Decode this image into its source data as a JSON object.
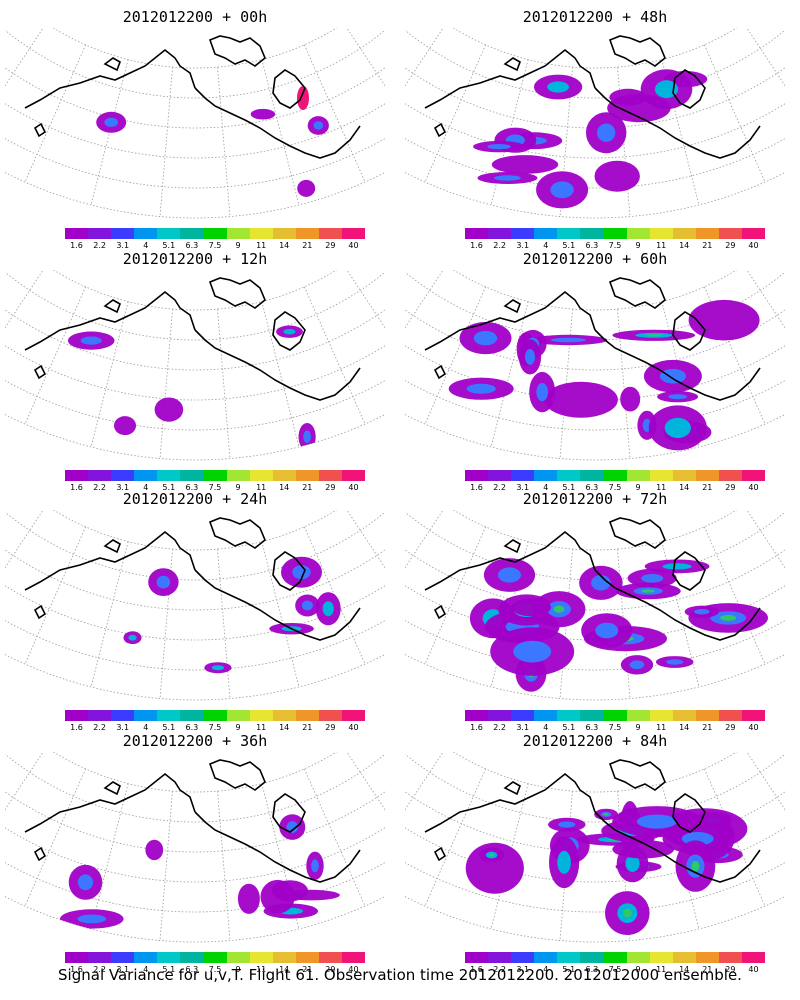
{
  "panels": [
    {
      "title": "2012012200 + 00h",
      "coverage": 0.05
    },
    {
      "title": "2012012200 + 48h",
      "coverage": 0.45
    },
    {
      "title": "2012012200 + 12h",
      "coverage": 0.1
    },
    {
      "title": "2012012200 + 60h",
      "coverage": 0.6
    },
    {
      "title": "2012012200 + 24h",
      "coverage": 0.2
    },
    {
      "title": "2012012200 + 72h",
      "coverage": 0.7
    },
    {
      "title": "2012012200 + 36h",
      "coverage": 0.3
    },
    {
      "title": "2012012200 + 84h",
      "coverage": 0.8
    }
  ],
  "colorbar": {
    "labels": [
      "1.6",
      "2.2",
      "3.1",
      "4",
      "5.1",
      "6.3",
      "7.5",
      "9",
      "11",
      "14",
      "21",
      "29",
      "40"
    ],
    "colors": [
      "#a000c8",
      "#8214dc",
      "#3c3cff",
      "#0096f0",
      "#00c8c8",
      "#00b4a0",
      "#00d200",
      "#a0e632",
      "#e6e632",
      "#e6be32",
      "#f09628",
      "#f05050",
      "#f01478"
    ]
  },
  "footer": "Signal Variance for u,v,T. Flight 61. Observation time 2012012200. 2012012000 ensemble."
}
